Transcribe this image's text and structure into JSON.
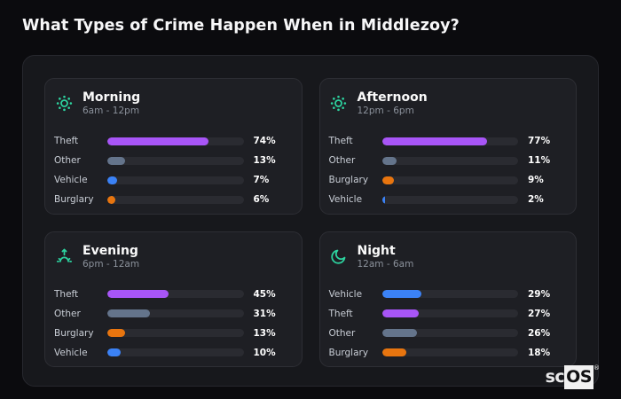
{
  "page": {
    "title": "What Types of Crime Happen When in Middlezoy?"
  },
  "brand": {
    "prefix": "sc",
    "suffix": "OS",
    "reg": "®"
  },
  "colors": {
    "accent_teal": "#2dd4a0",
    "theft_purple": "#a855f7",
    "other_slate": "#64748b",
    "vehicle_blue": "#3b82f6",
    "burglary_orange": "#e8750f",
    "page_bg": "#0b0b0e",
    "panel_bg": "#17181c",
    "card_bg": "#1e1f24",
    "track_bg": "#2a2b31"
  },
  "chart_data": [
    {
      "type": "bar",
      "orientation": "horizontal",
      "title": "Morning",
      "subtitle": "6am - 12pm",
      "icon": "sun-icon",
      "categories": [
        "Theft",
        "Other",
        "Vehicle",
        "Burglary"
      ],
      "values": [
        74,
        13,
        7,
        6
      ],
      "labels": [
        "74%",
        "13%",
        "7%",
        "6%"
      ],
      "bar_colors": [
        "#a855f7",
        "#64748b",
        "#3b82f6",
        "#e8750f"
      ],
      "xlim": [
        0,
        100
      ]
    },
    {
      "type": "bar",
      "orientation": "horizontal",
      "title": "Afternoon",
      "subtitle": "12pm - 6pm",
      "icon": "sun-icon",
      "categories": [
        "Theft",
        "Other",
        "Burglary",
        "Vehicle"
      ],
      "values": [
        77,
        11,
        9,
        2
      ],
      "labels": [
        "77%",
        "11%",
        "9%",
        "2%"
      ],
      "bar_colors": [
        "#a855f7",
        "#64748b",
        "#e8750f",
        "#3b82f6"
      ],
      "xlim": [
        0,
        100
      ]
    },
    {
      "type": "bar",
      "orientation": "horizontal",
      "title": "Evening",
      "subtitle": "6pm - 12am",
      "icon": "sunset-icon",
      "categories": [
        "Theft",
        "Other",
        "Burglary",
        "Vehicle"
      ],
      "values": [
        45,
        31,
        13,
        10
      ],
      "labels": [
        "45%",
        "31%",
        "13%",
        "10%"
      ],
      "bar_colors": [
        "#a855f7",
        "#64748b",
        "#e8750f",
        "#3b82f6"
      ],
      "xlim": [
        0,
        100
      ]
    },
    {
      "type": "bar",
      "orientation": "horizontal",
      "title": "Night",
      "subtitle": "12am - 6am",
      "icon": "moon-icon",
      "categories": [
        "Vehicle",
        "Theft",
        "Other",
        "Burglary"
      ],
      "values": [
        29,
        27,
        26,
        18
      ],
      "labels": [
        "29%",
        "27%",
        "26%",
        "18%"
      ],
      "bar_colors": [
        "#3b82f6",
        "#a855f7",
        "#64748b",
        "#e8750f"
      ],
      "xlim": [
        0,
        100
      ]
    }
  ]
}
